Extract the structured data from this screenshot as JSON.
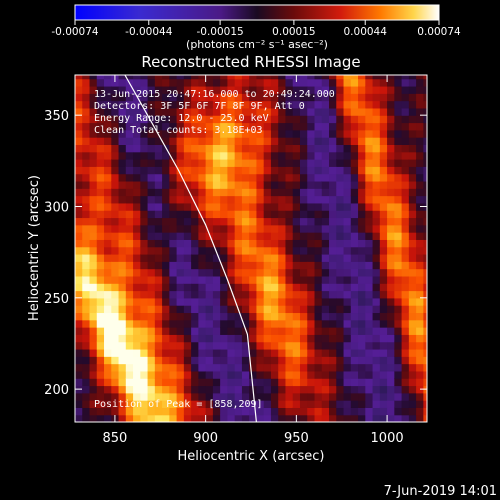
{
  "chart_data": {
    "type": "heatmap",
    "title": "Reconstructed RHESSI Image",
    "xlabel": "Heliocentric X (arcsec)",
    "ylabel": "Heliocentric Y (arcsec)",
    "xlim": [
      828,
      1022
    ],
    "ylim": [
      182,
      372
    ],
    "x_ticks": [
      850,
      900,
      950,
      1000
    ],
    "y_ticks": [
      200,
      250,
      300,
      350
    ],
    "colorbar": {
      "range": [
        -0.00074,
        0.00074
      ],
      "tick_labels": [
        "-0.00074",
        "-0.00044",
        "-0.00015",
        "0.00015",
        "0.00044",
        "0.00074"
      ],
      "units": "(photons cm⁻² s⁻¹ asec⁻²)"
    },
    "annotations": {
      "time_range": "13-Jun-2015 20:47:16.000 to 20:49:24.000",
      "detectors": "Detectors: 3F 5F 6F 7F 8F 9F, Att 0",
      "energy_range": "Energy Range: 12.0 - 25.0 keV",
      "clean": "Clean    Total counts: 3.18E+03",
      "peak": "Position of Peak = [858,209]"
    },
    "peak_position": [
      858,
      209
    ],
    "limb_arc": [
      [
        851,
        380
      ],
      [
        868,
        350
      ],
      [
        885,
        320
      ],
      [
        900,
        290
      ],
      [
        912,
        260
      ],
      [
        923,
        230
      ],
      [
        928,
        182
      ]
    ]
  },
  "footer": {
    "timestamp": "7-Jun-2019 14:01"
  }
}
